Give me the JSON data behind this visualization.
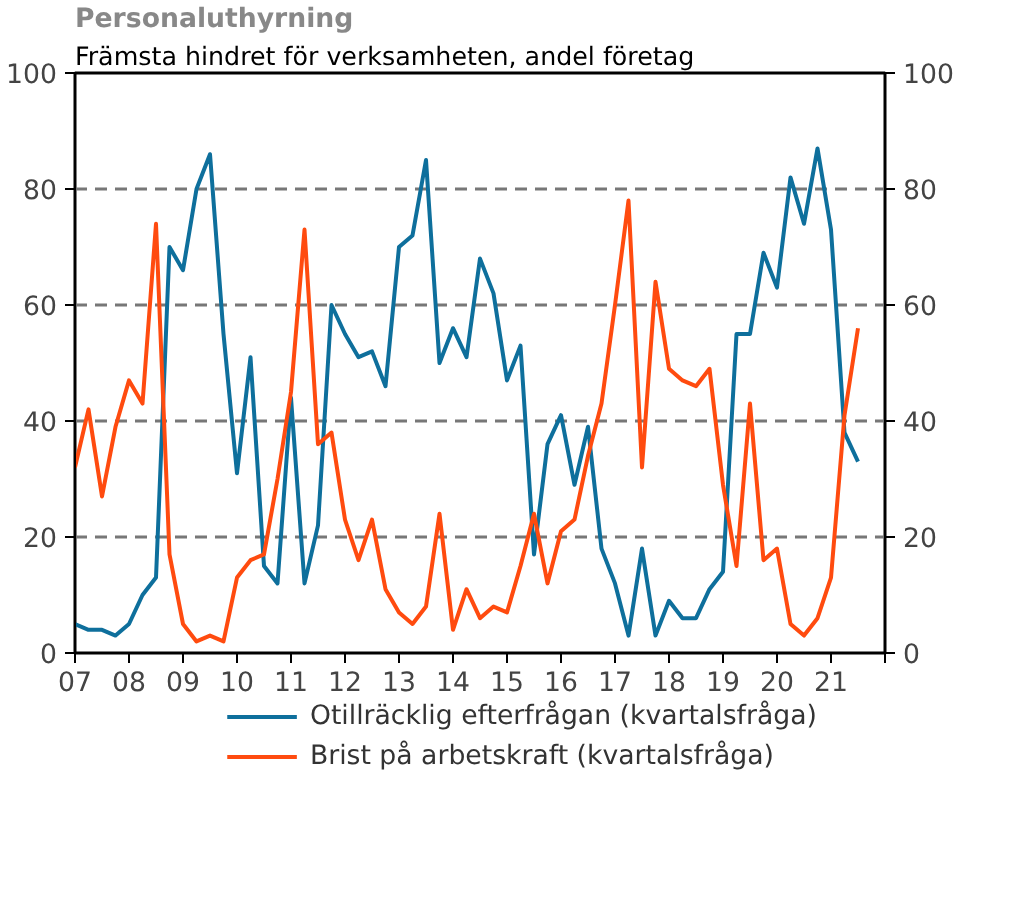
{
  "chart_data": {
    "type": "line",
    "title": "Personaluthyrning",
    "subtitle": "Främsta hindret för verksamheten, andel företag",
    "x": [
      2007,
      2007.25,
      2007.5,
      2007.75,
      2008,
      2008.25,
      2008.5,
      2008.75,
      2009,
      2009.25,
      2009.5,
      2009.75,
      2010,
      2010.25,
      2010.5,
      2010.75,
      2011,
      2011.25,
      2011.5,
      2011.75,
      2012,
      2012.25,
      2012.5,
      2012.75,
      2013,
      2013.25,
      2013.5,
      2013.75,
      2014,
      2014.25,
      2014.5,
      2014.75,
      2015,
      2015.25,
      2015.5,
      2015.75,
      2016,
      2016.25,
      2016.5,
      2016.75,
      2017,
      2017.25,
      2017.5,
      2017.75,
      2018,
      2018.25,
      2018.5,
      2018.75,
      2019,
      2019.25,
      2019.5,
      2019.75,
      2020,
      2020.25,
      2020.5,
      2020.75,
      2021,
      2021.25,
      2021.5
    ],
    "series": [
      {
        "name": "Otillräcklig efterfrågan (kvartalsfråga)",
        "color": "#0e6f9c",
        "values": [
          5,
          4,
          4,
          3,
          5,
          10,
          13,
          70,
          66,
          80,
          86,
          55,
          31,
          51,
          15,
          12,
          44,
          12,
          22,
          60,
          55,
          51,
          52,
          46,
          70,
          72,
          85,
          50,
          56,
          51,
          68,
          62,
          47,
          53,
          17,
          36,
          41,
          29,
          39,
          18,
          12,
          3,
          18,
          3,
          9,
          6,
          6,
          11,
          14,
          55,
          55,
          69,
          63,
          82,
          74,
          87,
          73,
          38,
          33
        ]
      },
      {
        "name": "Brist på arbetskraft (kvartalsfråga)",
        "color": "#ff4b0f",
        "values": [
          32,
          42,
          27,
          39,
          47,
          43,
          74,
          17,
          5,
          2,
          3,
          2,
          13,
          16,
          17,
          30,
          45,
          73,
          36,
          38,
          23,
          16,
          23,
          11,
          7,
          5,
          8,
          24,
          4,
          11,
          6,
          8,
          7,
          15,
          24,
          12,
          21,
          23,
          34,
          43,
          60,
          78,
          32,
          64,
          49,
          47,
          46,
          49,
          29,
          15,
          43,
          16,
          18,
          5,
          3,
          6,
          13,
          41,
          56
        ]
      }
    ],
    "xlim": [
      2007,
      2022
    ],
    "xticks": [
      {
        "value": 2007,
        "label": "07"
      },
      {
        "value": 2008,
        "label": "08"
      },
      {
        "value": 2009,
        "label": "09"
      },
      {
        "value": 2010,
        "label": "10"
      },
      {
        "value": 2011,
        "label": "11"
      },
      {
        "value": 2012,
        "label": "12"
      },
      {
        "value": 2013,
        "label": "13"
      },
      {
        "value": 2014,
        "label": "14"
      },
      {
        "value": 2015,
        "label": "15"
      },
      {
        "value": 2016,
        "label": "16"
      },
      {
        "value": 2017,
        "label": "17"
      },
      {
        "value": 2018,
        "label": "18"
      },
      {
        "value": 2019,
        "label": "19"
      },
      {
        "value": 2020,
        "label": "20"
      },
      {
        "value": 2021,
        "label": "21"
      },
      {
        "value": 2022,
        "label": null
      }
    ],
    "ylim": [
      0,
      100
    ],
    "yticks": [
      0,
      20,
      40,
      60,
      80,
      100
    ],
    "y2lim": [
      0,
      100
    ],
    "y2ticks": [
      0,
      20,
      40,
      60,
      80,
      100
    ],
    "grid": "y",
    "legend": "bottom",
    "marker": "none",
    "line_style": "solid"
  }
}
